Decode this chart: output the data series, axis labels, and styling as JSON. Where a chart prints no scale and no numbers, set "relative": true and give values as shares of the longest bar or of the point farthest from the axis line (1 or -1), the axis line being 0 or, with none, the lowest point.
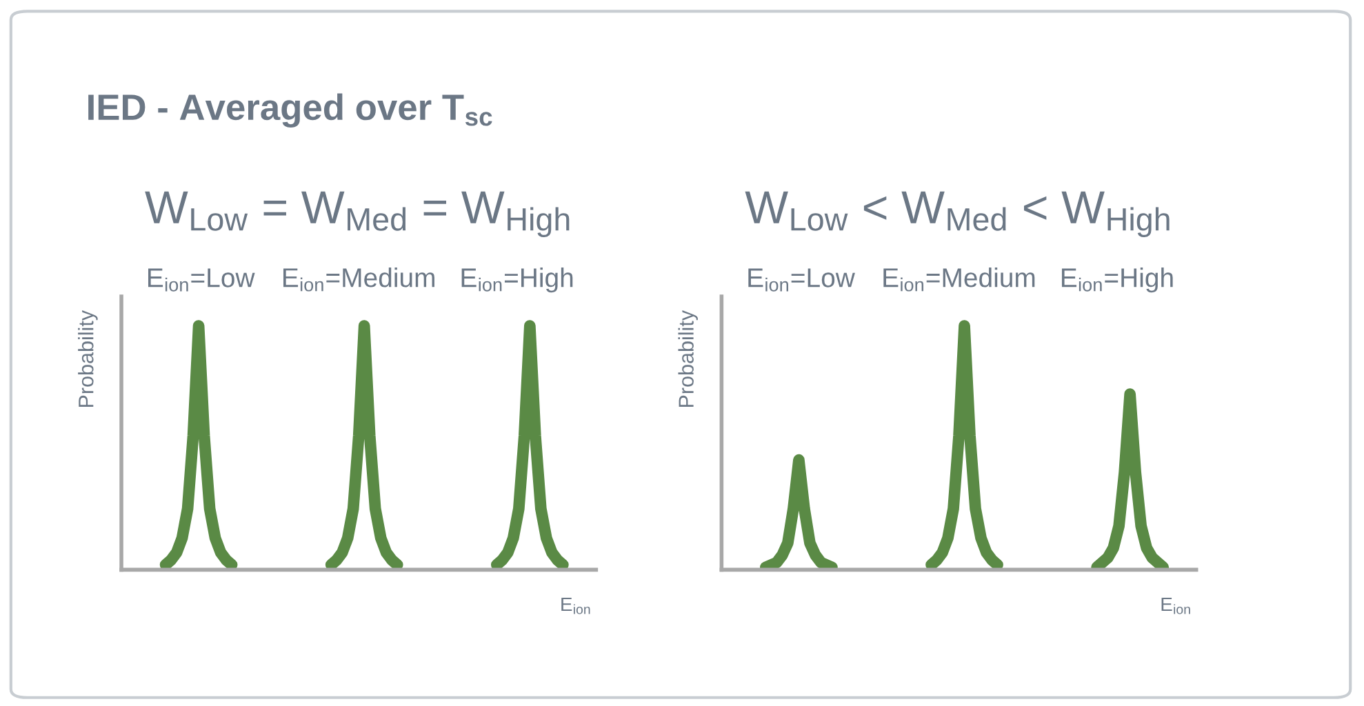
{
  "chart_data": [
    {
      "type": "line",
      "relative": true,
      "title": "IED - Averaged over T$_{sc}$",
      "subtitle": "W$_{Low}$ = W$_{Med}$ = W$_{High}$",
      "xlabel": "E$_{ion}$",
      "ylabel": "Probability",
      "annotations": [
        "E$_{ion}$=Low",
        "E$_{ion}$=Medium",
        "E$_{ion}$=High"
      ],
      "categories": [
        null,
        null,
        null,
        null,
        null,
        null,
        null,
        null,
        null,
        null,
        null,
        null,
        null,
        null,
        null,
        null,
        null,
        null,
        null,
        null,
        null,
        null,
        null,
        null,
        null,
        null,
        null,
        null,
        null,
        null,
        null,
        null,
        null,
        null,
        null,
        null,
        null,
        null,
        null,
        null,
        null,
        null,
        null,
        null,
        null,
        null,
        null,
        null,
        null,
        null,
        null,
        null,
        null,
        null,
        null,
        null,
        null,
        null,
        null,
        null,
        null,
        null,
        null,
        null,
        null,
        null,
        null,
        null,
        null,
        null,
        null,
        null,
        null,
        null,
        null,
        null,
        null,
        null,
        null,
        null,
        null,
        null,
        null,
        null,
        null,
        null,
        null
      ],
      "series": [
        {
          "color": "#5a8a45",
          "values": [
            null,
            null,
            null,
            null,
            null,
            null,
            null,
            null,
            0.02,
            0.04,
            0.07,
            0.13,
            0.25,
            0.55,
            1,
            0.55,
            0.25,
            0.13,
            0.07,
            0.04,
            0.02,
            null,
            null,
            null,
            null,
            null,
            null,
            null,
            null,
            null,
            null,
            null,
            null,
            null,
            null,
            null,
            null,
            null,
            null,
            null,
            null,
            null,
            null,
            null,
            null,
            null,
            null,
            null,
            null,
            null,
            null,
            null,
            null,
            null,
            null,
            null,
            null,
            null,
            null,
            null,
            null,
            null,
            null,
            null,
            null,
            null,
            null,
            null,
            null,
            null,
            null,
            null,
            null,
            null,
            null,
            null,
            null,
            null,
            null,
            null,
            null,
            null,
            null,
            null,
            null,
            null,
            null
          ]
        },
        {
          "color": "#5a8a45",
          "values": [
            null,
            null,
            null,
            null,
            null,
            null,
            null,
            null,
            null,
            null,
            null,
            null,
            null,
            null,
            null,
            null,
            null,
            null,
            null,
            null,
            null,
            null,
            null,
            null,
            null,
            null,
            null,
            null,
            null,
            null,
            null,
            null,
            null,
            null,
            null,
            null,
            null,
            null,
            0.02,
            0.04,
            0.07,
            0.13,
            0.25,
            0.55,
            1,
            0.55,
            0.25,
            0.13,
            0.07,
            0.04,
            0.02,
            null,
            null,
            null,
            null,
            null,
            null,
            null,
            null,
            null,
            null,
            null,
            null,
            null,
            null,
            null,
            null,
            null,
            null,
            null,
            null,
            null,
            null,
            null,
            null,
            null,
            null,
            null,
            null,
            null,
            null,
            null,
            null,
            null,
            null,
            null,
            null
          ]
        },
        {
          "color": "#5a8a45",
          "values": [
            null,
            null,
            null,
            null,
            null,
            null,
            null,
            null,
            null,
            null,
            null,
            null,
            null,
            null,
            null,
            null,
            null,
            null,
            null,
            null,
            null,
            null,
            null,
            null,
            null,
            null,
            null,
            null,
            null,
            null,
            null,
            null,
            null,
            null,
            null,
            null,
            null,
            null,
            null,
            null,
            null,
            null,
            null,
            null,
            null,
            null,
            null,
            null,
            null,
            null,
            null,
            null,
            null,
            null,
            null,
            null,
            null,
            null,
            null,
            null,
            null,
            null,
            null,
            null,
            null,
            null,
            null,
            null,
            0.02,
            0.04,
            0.07,
            0.13,
            0.25,
            0.55,
            1,
            0.55,
            0.25,
            0.13,
            0.07,
            0.04,
            0.02,
            null,
            null,
            null,
            null,
            null,
            null
          ]
        }
      ]
    },
    {
      "type": "line",
      "relative": true,
      "subtitle": "W$_{Low}$ < W$_{Med}$ < W$_{High}$",
      "xlabel": "E$_{ion}$",
      "ylabel": "Probability",
      "annotations": [
        "E$_{ion}$=Low",
        "E$_{ion}$=Medium",
        "E$_{ion}$=High"
      ],
      "categories": [
        null,
        null,
        null,
        null,
        null,
        null,
        null,
        null,
        null,
        null,
        null,
        null,
        null,
        null,
        null,
        null,
        null,
        null,
        null,
        null,
        null,
        null,
        null,
        null,
        null,
        null,
        null,
        null,
        null,
        null,
        null,
        null,
        null,
        null,
        null,
        null,
        null,
        null,
        null,
        null,
        null,
        null,
        null,
        null,
        null,
        null,
        null,
        null,
        null,
        null,
        null,
        null,
        null,
        null,
        null,
        null,
        null,
        null,
        null,
        null,
        null,
        null,
        null,
        null,
        null,
        null,
        null,
        null,
        null,
        null,
        null,
        null,
        null,
        null,
        null,
        null,
        null,
        null,
        null,
        null,
        null,
        null,
        null,
        null,
        null,
        null,
        null
      ],
      "series": [
        {
          "color": "#5a8a45",
          "values": [
            null,
            null,
            null,
            null,
            null,
            null,
            null,
            null,
            0.01,
            0.02,
            0.03,
            0.06,
            0.11,
            0.25,
            0.45,
            0.25,
            0.11,
            0.06,
            0.03,
            0.02,
            0.01,
            null,
            null,
            null,
            null,
            null,
            null,
            null,
            null,
            null,
            null,
            null,
            null,
            null,
            null,
            null,
            null,
            null,
            null,
            null,
            null,
            null,
            null,
            null,
            null,
            null,
            null,
            null,
            null,
            null,
            null,
            null,
            null,
            null,
            null,
            null,
            null,
            null,
            null,
            null,
            null,
            null,
            null,
            null,
            null,
            null,
            null,
            null,
            null,
            null,
            null,
            null,
            null,
            null,
            null,
            null,
            null,
            null,
            null,
            null,
            null,
            null,
            null,
            null,
            null,
            null,
            null
          ]
        },
        {
          "color": "#5a8a45",
          "values": [
            null,
            null,
            null,
            null,
            null,
            null,
            null,
            null,
            null,
            null,
            null,
            null,
            null,
            null,
            null,
            null,
            null,
            null,
            null,
            null,
            null,
            null,
            null,
            null,
            null,
            null,
            null,
            null,
            null,
            null,
            null,
            null,
            null,
            null,
            null,
            null,
            null,
            null,
            0.02,
            0.04,
            0.07,
            0.13,
            0.25,
            0.55,
            1,
            0.55,
            0.25,
            0.13,
            0.07,
            0.04,
            0.02,
            null,
            null,
            null,
            null,
            null,
            null,
            null,
            null,
            null,
            null,
            null,
            null,
            null,
            null,
            null,
            null,
            null,
            null,
            null,
            null,
            null,
            null,
            null,
            null,
            null,
            null,
            null,
            null,
            null,
            null,
            null,
            null,
            null,
            null,
            null,
            null
          ]
        },
        {
          "color": "#5a8a45",
          "values": [
            null,
            null,
            null,
            null,
            null,
            null,
            null,
            null,
            null,
            null,
            null,
            null,
            null,
            null,
            null,
            null,
            null,
            null,
            null,
            null,
            null,
            null,
            null,
            null,
            null,
            null,
            null,
            null,
            null,
            null,
            null,
            null,
            null,
            null,
            null,
            null,
            null,
            null,
            null,
            null,
            null,
            null,
            null,
            null,
            null,
            null,
            null,
            null,
            null,
            null,
            null,
            null,
            null,
            null,
            null,
            null,
            null,
            null,
            null,
            null,
            null,
            null,
            null,
            null,
            null,
            null,
            null,
            null,
            0.01,
            0.03,
            0.05,
            0.09,
            0.18,
            0.4,
            0.72,
            0.4,
            0.18,
            0.09,
            0.05,
            0.03,
            0.01,
            null,
            null,
            null,
            null,
            null,
            null
          ]
        }
      ]
    }
  ]
}
